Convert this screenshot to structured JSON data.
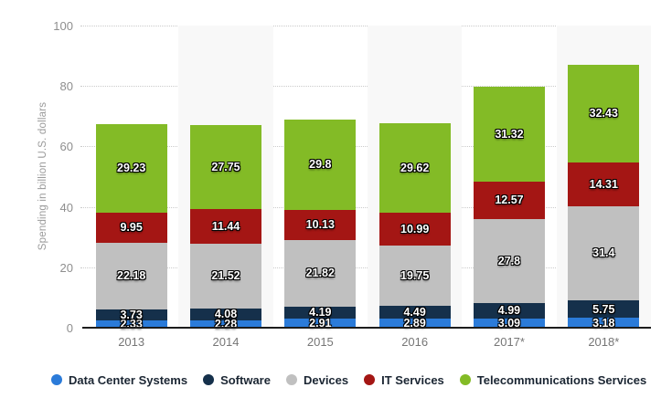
{
  "chart_data": {
    "type": "bar",
    "stacked": true,
    "title": "",
    "xlabel": "",
    "ylabel": "Spending in billion U.S. dollars",
    "ylim": [
      0,
      100
    ],
    "yticks": [
      0,
      20,
      40,
      60,
      80,
      100
    ],
    "grid": "horizontal-dotted",
    "legend_position": "bottom",
    "categories": [
      "2013",
      "2014",
      "2015",
      "2016",
      "2017*",
      "2018*"
    ],
    "series": [
      {
        "name": "Data Center Systems",
        "color": "#2b7bd9",
        "values": [
          2.33,
          2.28,
          2.91,
          2.89,
          3.09,
          3.18
        ]
      },
      {
        "name": "Software",
        "color": "#15304b",
        "values": [
          3.73,
          4.08,
          4.19,
          4.49,
          4.99,
          5.75
        ]
      },
      {
        "name": "Devices",
        "color": "#c0c0c0",
        "values": [
          22.18,
          21.52,
          21.82,
          19.75,
          27.8,
          31.4
        ]
      },
      {
        "name": "IT Services",
        "color": "#a41614",
        "values": [
          9.95,
          11.44,
          10.13,
          10.99,
          12.57,
          14.31
        ]
      },
      {
        "name": "Telecommunications Services",
        "color": "#83bb26",
        "values": [
          29.23,
          27.75,
          29.8,
          29.62,
          31.32,
          32.43
        ]
      }
    ],
    "value_label_color": "#ffffff",
    "alt_column_band_color": "#f8f8f8"
  }
}
